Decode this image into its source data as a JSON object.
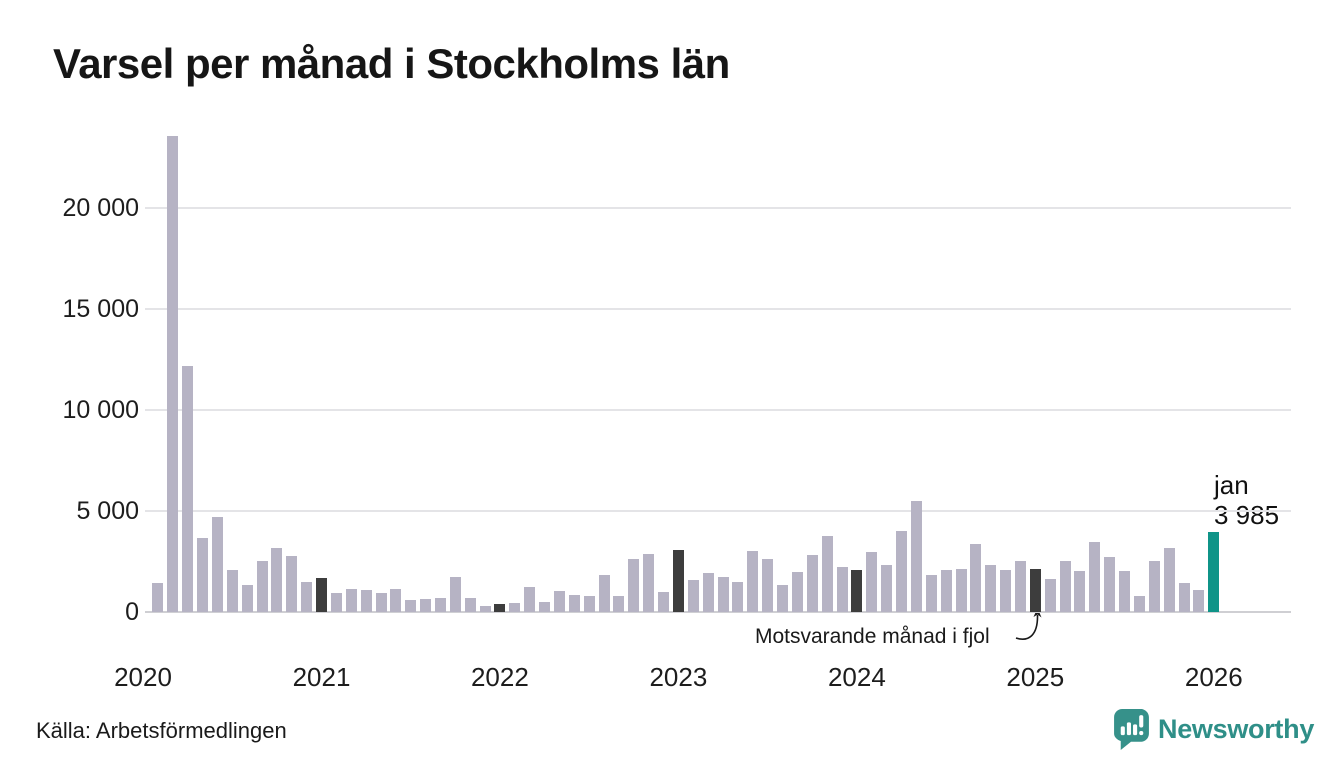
{
  "title": "Varsel per månad i Stockholms län",
  "annotation": {
    "text": "Motsvarande månad i fjol"
  },
  "current_label": {
    "line1": "jan",
    "line2": "3 985"
  },
  "footer": {
    "source": "Källa: Arbetsförmedlingen",
    "brand": "Newsworthy"
  },
  "colors": {
    "bar_default": "#b6b3c4",
    "bar_january": "#3d3d3d",
    "bar_current": "#0f9488",
    "gridline": "#e4e4e7",
    "axis_line": "#cfcfd3",
    "title_text": "#161616",
    "label_text": "#1d1d1d",
    "logo_teal": "#2f8f88"
  },
  "chart_data": {
    "type": "bar",
    "title": "Varsel per månad i Stockholms län",
    "xlabel": "",
    "ylabel": "",
    "ylim": [
      0,
      24000
    ],
    "grid": "horizontal",
    "legend": "none",
    "y_ticks": [
      {
        "value": 0,
        "label": "0"
      },
      {
        "value": 5000,
        "label": "5 000"
      },
      {
        "value": 10000,
        "label": "10 000"
      },
      {
        "value": 15000,
        "label": "15 000"
      },
      {
        "value": 20000,
        "label": "20 000"
      }
    ],
    "x_year_labels": [
      "2020",
      "2021",
      "2022",
      "2023",
      "2024",
      "2025",
      "2026"
    ],
    "categories": [
      "2020-02",
      "2020-03",
      "2020-04",
      "2020-05",
      "2020-06",
      "2020-07",
      "2020-08",
      "2020-09",
      "2020-10",
      "2020-11",
      "2020-12",
      "2021-01",
      "2021-02",
      "2021-03",
      "2021-04",
      "2021-05",
      "2021-06",
      "2021-07",
      "2021-08",
      "2021-09",
      "2021-10",
      "2021-11",
      "2021-12",
      "2022-01",
      "2022-02",
      "2022-03",
      "2022-04",
      "2022-05",
      "2022-06",
      "2022-07",
      "2022-08",
      "2022-09",
      "2022-10",
      "2022-11",
      "2022-12",
      "2023-01",
      "2023-02",
      "2023-03",
      "2023-04",
      "2023-05",
      "2023-06",
      "2023-07",
      "2023-08",
      "2023-09",
      "2023-10",
      "2023-11",
      "2023-12",
      "2024-01",
      "2024-02",
      "2024-03",
      "2024-04",
      "2024-05",
      "2024-06",
      "2024-07",
      "2024-08",
      "2024-09",
      "2024-10",
      "2024-11",
      "2024-12",
      "2025-01",
      "2025-02",
      "2025-03",
      "2025-04",
      "2025-05",
      "2025-06",
      "2025-07",
      "2025-08",
      "2025-09",
      "2025-10",
      "2025-11",
      "2025-12",
      "2026-01"
    ],
    "values": [
      1450,
      23600,
      12200,
      3650,
      4700,
      2100,
      1350,
      2550,
      3150,
      2800,
      1500,
      1700,
      950,
      1150,
      1100,
      925,
      1150,
      600,
      630,
      680,
      1720,
      710,
      320,
      400,
      465,
      1225,
      495,
      1025,
      830,
      795,
      1820,
      780,
      2630,
      2895,
      995,
      3090,
      1570,
      1920,
      1720,
      1475,
      3030,
      2630,
      1355,
      2000,
      2845,
      3790,
      2235,
      2085,
      2995,
      2330,
      4000,
      5480,
      1840,
      2085,
      2120,
      3375,
      2350,
      2100,
      2515,
      2135,
      1625,
      2525,
      2050,
      3475,
      2730,
      2035,
      810,
      2550,
      3150,
      1450,
      1100,
      3985
    ],
    "highlights": {
      "january_bars": "dark",
      "latest_bar": "teal",
      "latest": {
        "month": "jan",
        "year": "2026",
        "value": 3985,
        "value_label": "3 985"
      }
    }
  }
}
